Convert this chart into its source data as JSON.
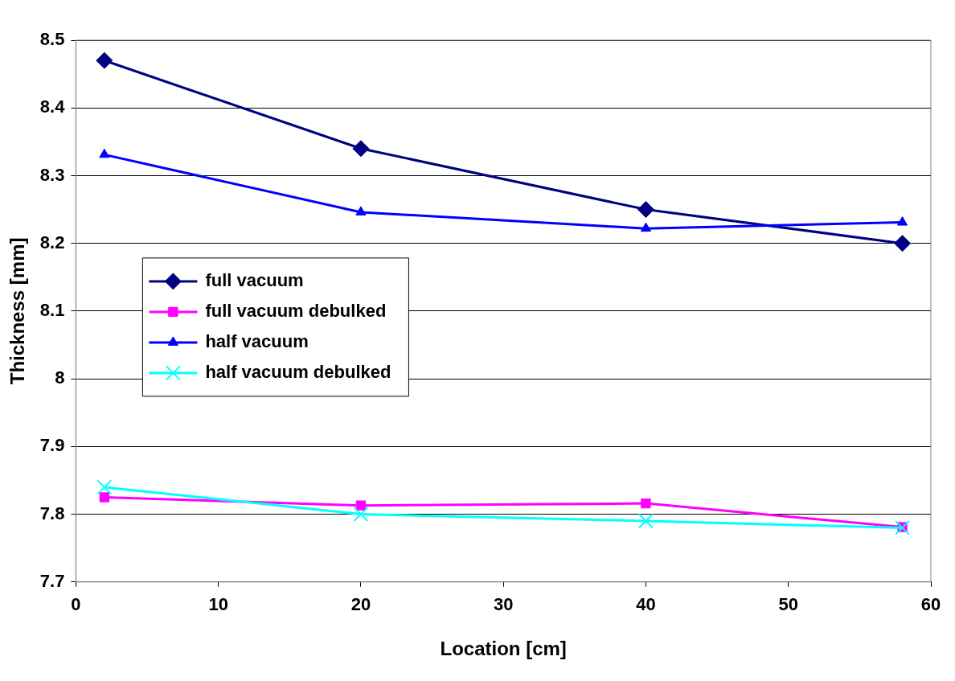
{
  "chart_data": {
    "type": "line",
    "xlabel": "Location [cm]",
    "ylabel": "Thickness [mm]",
    "x": [
      2,
      20,
      40,
      58
    ],
    "series": [
      {
        "name": "full vacuum",
        "color": "#000080",
        "marker": "diamond",
        "values": [
          8.47,
          8.34,
          8.25,
          8.2
        ]
      },
      {
        "name": "full vacuum debulked",
        "color": "#ff00ff",
        "marker": "square",
        "values": [
          7.825,
          7.813,
          7.816,
          7.781
        ]
      },
      {
        "name": "half vacuum",
        "color": "#0000ff",
        "marker": "triangle",
        "values": [
          8.331,
          8.246,
          8.222,
          8.231
        ]
      },
      {
        "name": "half vacuum debulked",
        "color": "#00ffff",
        "marker": "cross",
        "values": [
          7.84,
          7.8,
          7.79,
          7.78
        ]
      }
    ],
    "xlim": [
      0,
      60
    ],
    "xticks": [
      0,
      10,
      20,
      30,
      40,
      50,
      60
    ],
    "ylim": [
      7.7,
      8.5
    ],
    "yticks": [
      7.7,
      7.8,
      7.9,
      8,
      8.1,
      8.2,
      8.3,
      8.4,
      8.5
    ],
    "grid": "y",
    "legend": "center left",
    "line_style": "solid"
  }
}
